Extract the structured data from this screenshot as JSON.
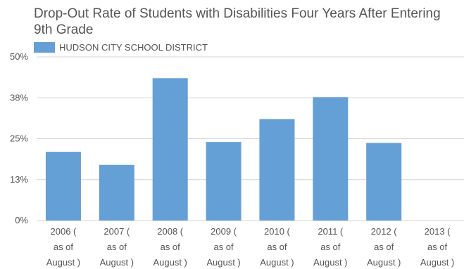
{
  "chart_data": {
    "type": "bar",
    "title": "Drop-Out Rate of Students with Disabilities Four Years After Entering 9th Grade",
    "xlabel": "",
    "ylabel": "",
    "categories": [
      [
        "2006 (",
        "as of",
        "August )"
      ],
      [
        "2007 (",
        "as of",
        "August )"
      ],
      [
        "2008 (",
        "as of",
        "August )"
      ],
      [
        "2009 (",
        "as of",
        "August )"
      ],
      [
        "2010 (",
        "as of",
        "August )"
      ],
      [
        "2011 (",
        "as of",
        "August )"
      ],
      [
        "2012 (",
        "as of",
        "August )"
      ],
      [
        "2013 (",
        "as of",
        "August )"
      ]
    ],
    "series": [
      {
        "name": "HUDSON CITY SCHOOL DISTRICT",
        "color": "#649fd6",
        "values": [
          21,
          17,
          43.5,
          24,
          31,
          37.7,
          23.7,
          0
        ]
      }
    ],
    "ylim": [
      0,
      50
    ],
    "yticks": [
      0,
      12.5,
      25,
      37.5,
      50
    ],
    "ytick_labels": [
      "0%",
      "13%",
      "25%",
      "38%",
      "50%"
    ],
    "grid": true,
    "legend_position": "top-left"
  }
}
